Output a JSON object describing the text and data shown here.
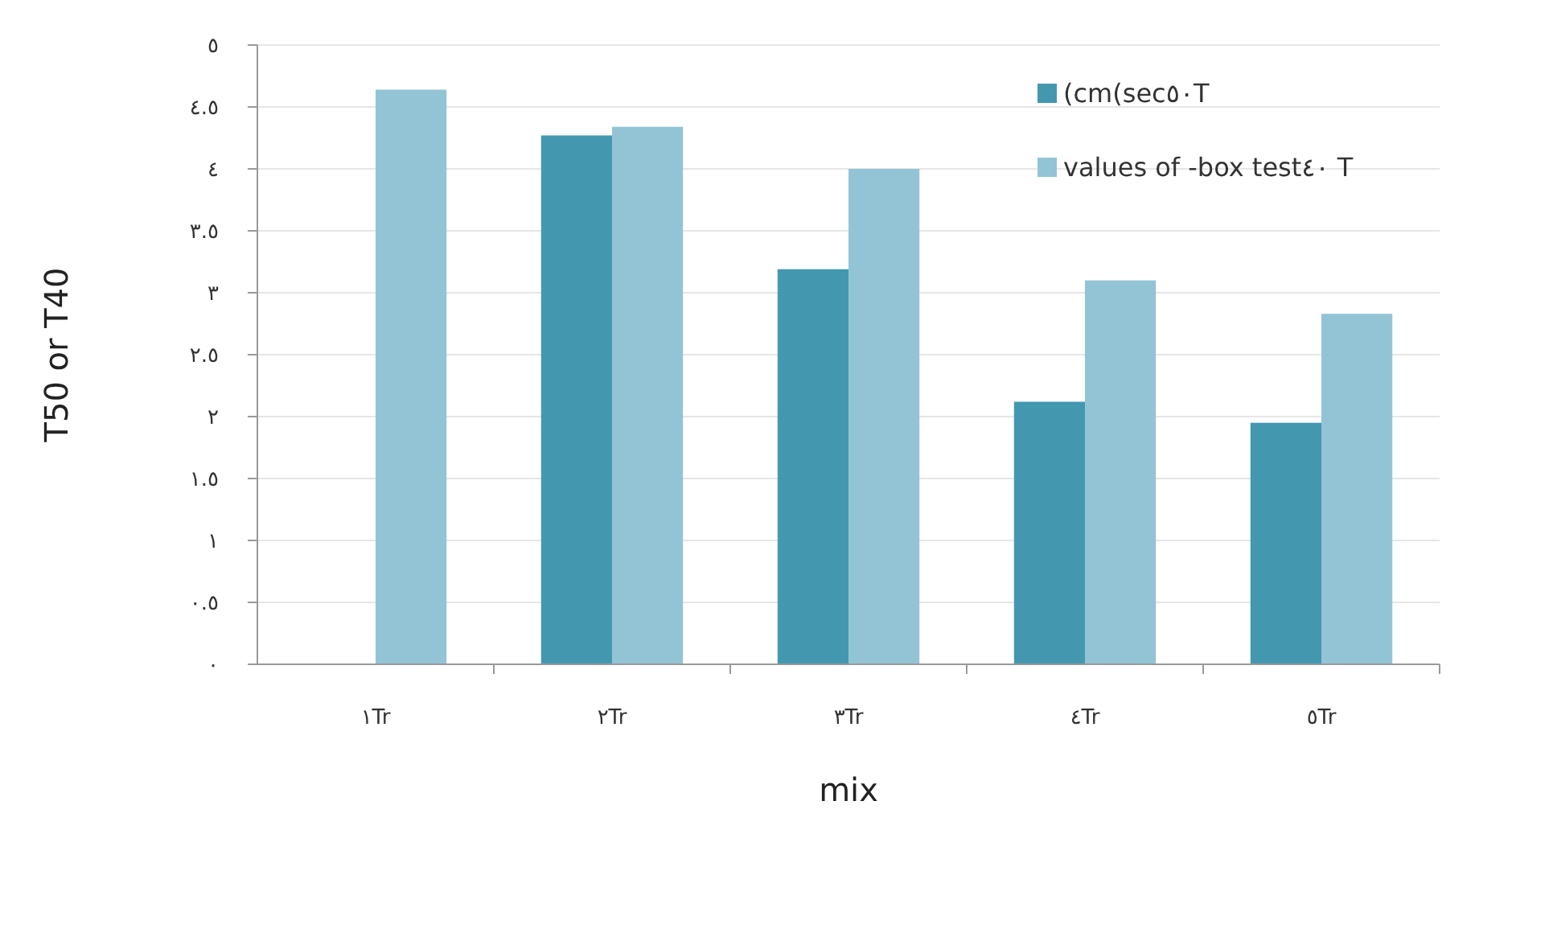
{
  "chart_data": {
    "type": "bar",
    "xlabel": "mix",
    "ylabel": "T50 or T40",
    "categories": [
      "١Tr",
      "٢Tr",
      "٣Tr",
      "٤Tr",
      "٥Tr"
    ],
    "series": [
      {
        "name": "(cm(sec٥٠T",
        "color": "#4398b0",
        "values": [
          null,
          4.27,
          3.19,
          2.12,
          1.95
        ]
      },
      {
        "name": "values of -box test٤٠ T",
        "color": "#93c4d6",
        "values": [
          4.64,
          4.34,
          4.0,
          3.1,
          2.83
        ]
      }
    ],
    "ylim": [
      0,
      5
    ],
    "yticks": [
      {
        "value": 0,
        "label": "٠"
      },
      {
        "value": 0.5,
        "label": "٠.٥"
      },
      {
        "value": 1,
        "label": "١"
      },
      {
        "value": 1.5,
        "label": "١.٥"
      },
      {
        "value": 2,
        "label": "٢"
      },
      {
        "value": 2.5,
        "label": "٢.٥"
      },
      {
        "value": 3,
        "label": "٣"
      },
      {
        "value": 3.5,
        "label": "٣.٥"
      },
      {
        "value": 4,
        "label": "٤"
      },
      {
        "value": 4.5,
        "label": "٤.٥"
      },
      {
        "value": 5,
        "label": "٥"
      }
    ],
    "grid": "y",
    "legend": "top right"
  }
}
